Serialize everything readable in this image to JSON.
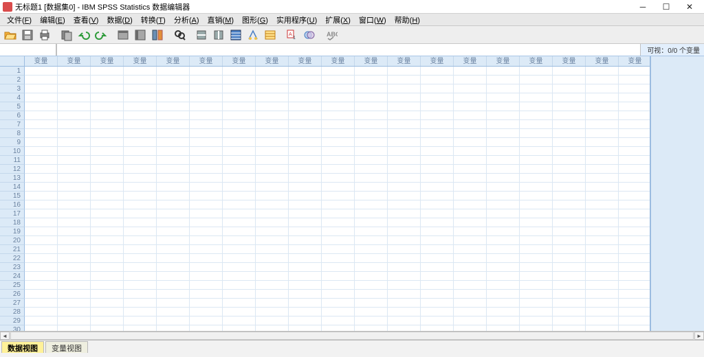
{
  "window": {
    "title": "无标题1 [数据集0] - IBM SPSS Statistics 数据编辑器"
  },
  "menu": {
    "items": [
      {
        "label": "文件",
        "u": "F"
      },
      {
        "label": "编辑",
        "u": "E"
      },
      {
        "label": "查看",
        "u": "V"
      },
      {
        "label": "数据",
        "u": "D"
      },
      {
        "label": "转换",
        "u": "T"
      },
      {
        "label": "分析",
        "u": "A"
      },
      {
        "label": "直销",
        "u": "M"
      },
      {
        "label": "图形",
        "u": "G"
      },
      {
        "label": "实用程序",
        "u": "U"
      },
      {
        "label": "扩展",
        "u": "X"
      },
      {
        "label": "窗口",
        "u": "W"
      },
      {
        "label": "帮助",
        "u": "H"
      }
    ]
  },
  "toolbar": {
    "icons": [
      "open",
      "save",
      "print",
      "",
      "recent",
      "undo",
      "redo",
      "",
      "goto",
      "vars",
      "compute",
      "",
      "find",
      "",
      "insert-case",
      "insert-var",
      "split",
      "weight",
      "select",
      "",
      "value-labels",
      "use-sets",
      "",
      "spell"
    ]
  },
  "status_right": "可视：0/0 个变量",
  "grid": {
    "col_label": "变量",
    "num_cols": 19,
    "num_rows": 30
  },
  "tabs": {
    "data_view": "数据视图",
    "variable_view": "变量视图"
  },
  "colors": {
    "header_bg": "#dceaf7",
    "header_border": "#9bbce0",
    "cell_border": "#dbe7f3",
    "active_tab_bg": "#fff199"
  }
}
